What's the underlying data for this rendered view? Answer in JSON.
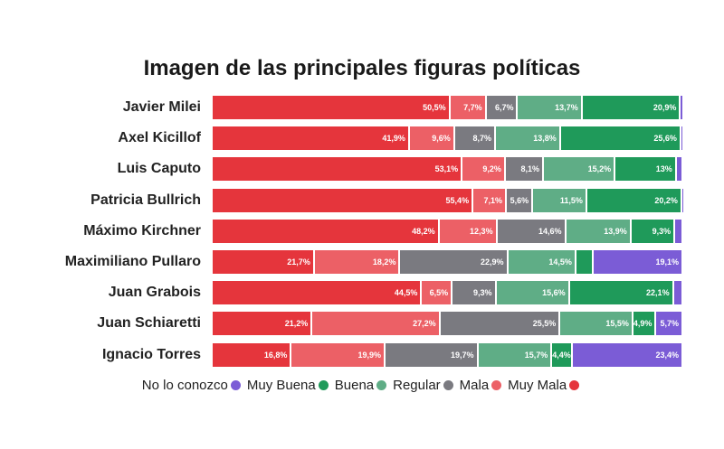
{
  "chart_data": {
    "type": "bar",
    "orientation": "horizontal-stacked-100",
    "title": "Imagen de las principales figuras políticas",
    "categories": [
      "Javier Milei",
      "Axel Kicillof",
      "Luis Caputo",
      "Patricia Bullrich",
      "Máximo Kirchner",
      "Maximiliano Pullaro",
      "Juan Grabois",
      "Juan Schiaretti",
      "Ignacio Torres"
    ],
    "series": [
      {
        "name": "Muy Mala",
        "color": "#e5353c",
        "values": [
          50.5,
          41.9,
          53.1,
          55.4,
          48.2,
          21.7,
          44.5,
          21.2,
          16.8
        ],
        "labels": [
          "50,5%",
          "41,9%",
          "53,1%",
          "55,4%",
          "48,2%",
          "21,7%",
          "44,5%",
          "21,2%",
          "16,8%"
        ]
      },
      {
        "name": "Mala",
        "color": "#ec6066",
        "values": [
          7.7,
          9.6,
          9.2,
          7.1,
          12.3,
          18.2,
          6.5,
          27.2,
          19.9
        ],
        "labels": [
          "7,7%",
          "9,6%",
          "9,2%",
          "7,1%",
          "12,3%",
          "18,2%",
          "6,5%",
          "27,2%",
          "19,9%"
        ]
      },
      {
        "name": "Regular",
        "color": "#7a7a80",
        "values": [
          6.7,
          8.7,
          8.1,
          5.6,
          14.6,
          22.9,
          9.3,
          25.5,
          19.7
        ],
        "labels": [
          "6,7%",
          "8,7%",
          "8,1%",
          "5,6%",
          "14,6%",
          "22,9%",
          "9,3%",
          "25,5%",
          "19,7%"
        ]
      },
      {
        "name": "Buena",
        "color": "#5fad86",
        "values": [
          13.7,
          13.8,
          15.2,
          11.5,
          13.9,
          14.5,
          15.6,
          15.5,
          15.7
        ],
        "labels": [
          "13,7%",
          "13,8%",
          "15,2%",
          "11,5%",
          "13,9%",
          "14,5%",
          "15,6%",
          "15,5%",
          "15,7%"
        ]
      },
      {
        "name": "Muy Buena",
        "color": "#1f9a5a",
        "values": [
          20.9,
          25.6,
          13,
          20.2,
          9.3,
          3.6,
          22.1,
          4.9,
          4.4
        ],
        "labels": [
          "20,9%",
          "25,6%",
          "13%",
          "20,2%",
          "9,3%",
          "",
          "22,1%",
          "4,9%",
          "4,4%"
        ]
      },
      {
        "name": "No lo conozco",
        "color": "#7b5cd6",
        "values": [
          0.5,
          0.4,
          1.4,
          0.2,
          1.7,
          19.1,
          2.0,
          5.7,
          23.4
        ],
        "labels": [
          "",
          "",
          "",
          "",
          "",
          "19,1%",
          "",
          "5,7%",
          "23,4%"
        ]
      }
    ],
    "legend": {
      "placement": "bottom",
      "order": [
        "No lo conozco",
        "Muy Buena",
        "Buena",
        "Regular",
        "Mala",
        "Muy Mala"
      ]
    },
    "xlim": [
      0,
      100
    ],
    "grid": false
  }
}
